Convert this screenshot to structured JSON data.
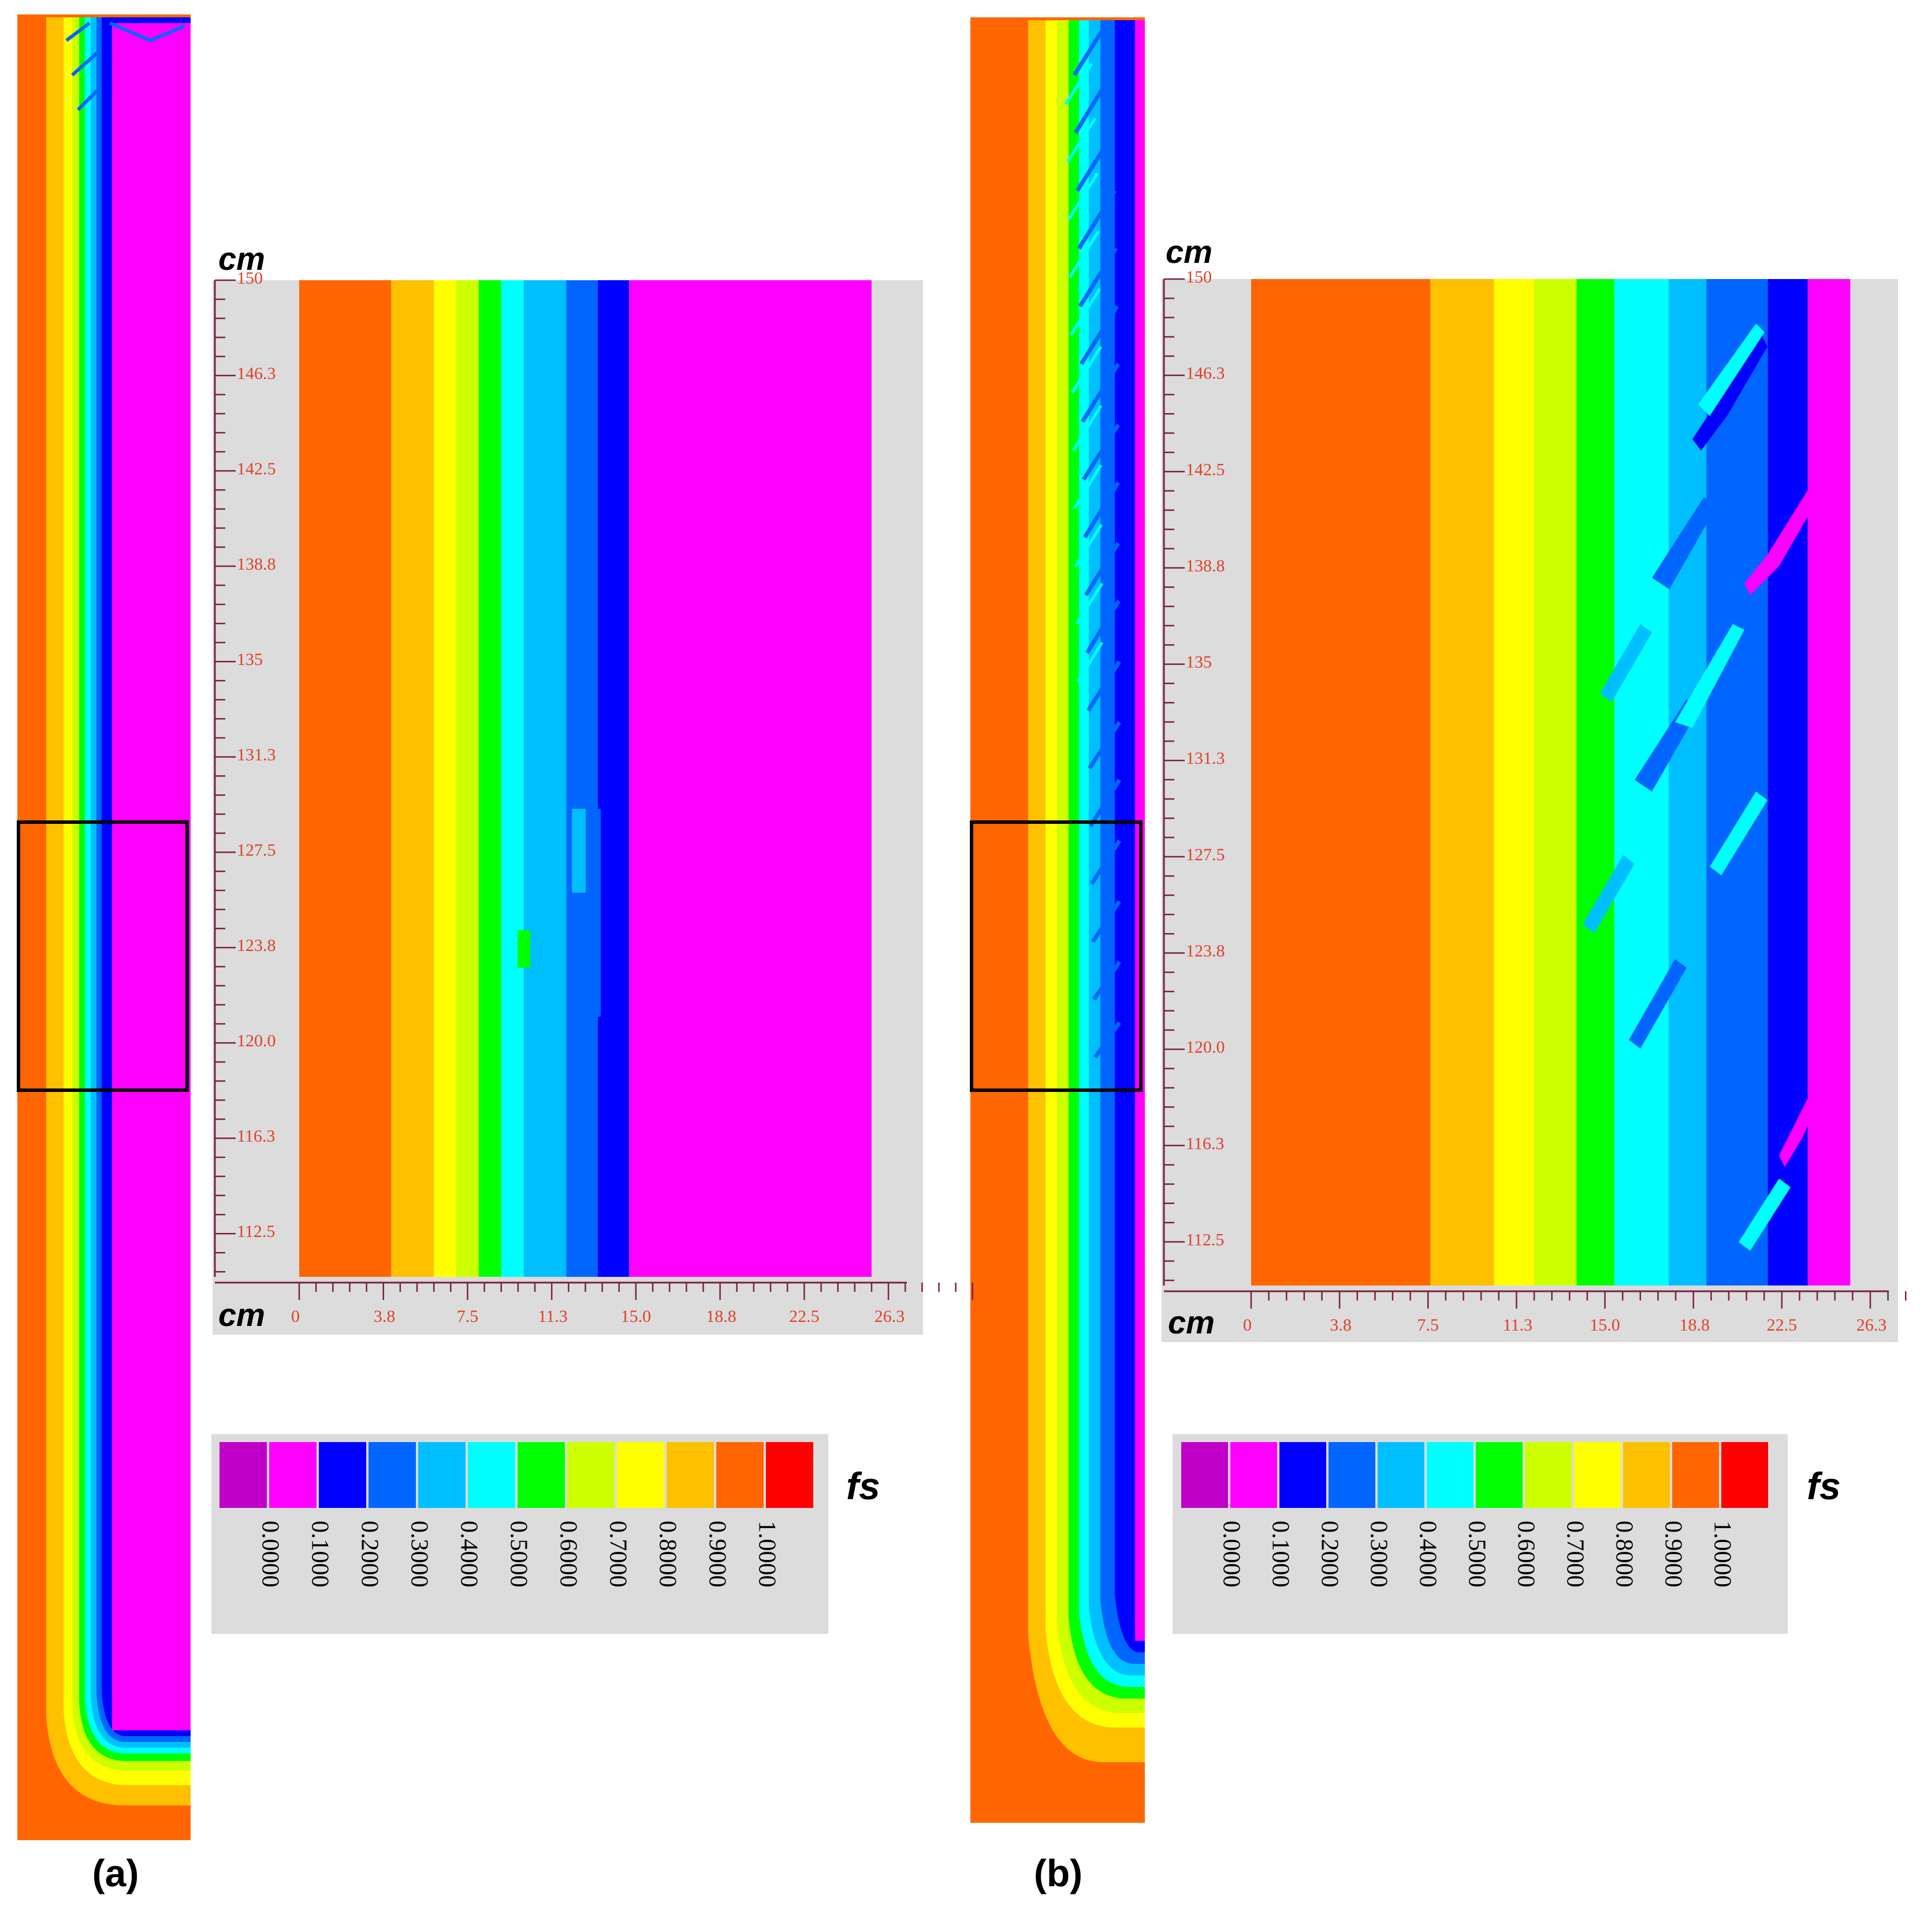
{
  "figure": {
    "colorbar_symbol": "fs",
    "axis_unit": "cm",
    "colors": {
      "magenta": "#ff00ff",
      "purple": "#c000c8",
      "blue": "#0000ff",
      "medium_blue": "#0066ff",
      "sky_blue": "#00bfff",
      "cyan": "#00ffff",
      "green": "#00ff00",
      "yellow_green": "#ccff00",
      "yellow": "#ffff00",
      "gold": "#ffc000",
      "orange": "#ff6600",
      "red": "#ff0000",
      "panel_gray": "#dcdcdc",
      "tick_label": "#e0402a",
      "tick_mark": "#7a2040"
    }
  },
  "chart_data": [
    {
      "type": "heatmap",
      "panel_label": "(a)",
      "variable": "fs",
      "ylabel": "cm",
      "xlabel": "cm",
      "y_ticks": [
        "150",
        "146.3",
        "142.5",
        "138.8",
        "135",
        "131.3",
        "127.5",
        "123.8",
        "120.0",
        "116.3",
        "112.5"
      ],
      "x_ticks": [
        "0",
        "3.8",
        "7.5",
        "11.3",
        "15.0",
        "18.8",
        "22.5",
        "26.3"
      ],
      "xlim": [
        0,
        26.3
      ],
      "ylim": [
        110.8,
        150
      ],
      "bands": [
        {
          "fs": 0.95,
          "x_start": 0,
          "x_end": 4.1
        },
        {
          "fs": 0.85,
          "x_start": 4.1,
          "x_end": 6.0
        },
        {
          "fs": 0.75,
          "x_start": 6.0,
          "x_end": 7.0
        },
        {
          "fs": 0.65,
          "x_start": 7.0,
          "x_end": 8.0
        },
        {
          "fs": 0.55,
          "x_start": 8.0,
          "x_end": 9.0
        },
        {
          "fs": 0.45,
          "x_start": 9.0,
          "x_end": 10.0
        },
        {
          "fs": 0.35,
          "x_start": 10.0,
          "x_end": 11.9
        },
        {
          "fs": 0.25,
          "x_start": 11.9,
          "x_end": 13.3
        },
        {
          "fs": 0.15,
          "x_start": 13.3,
          "x_end": 14.7
        },
        {
          "fs": 0.05,
          "x_start": 14.7,
          "x_end": 25.5
        }
      ],
      "colorbar": {
        "labels": [
          "0.0000",
          "0.1000",
          "0.2000",
          "0.3000",
          "0.4000",
          "0.5000",
          "0.6000",
          "0.7000",
          "0.8000",
          "0.9000",
          "1.0000"
        ]
      }
    },
    {
      "type": "heatmap",
      "panel_label": "(b)",
      "variable": "fs",
      "ylabel": "cm",
      "xlabel": "cm",
      "y_ticks": [
        "150",
        "146.3",
        "142.5",
        "138.8",
        "135",
        "131.3",
        "127.5",
        "123.8",
        "120.0",
        "116.3",
        "112.5"
      ],
      "x_ticks": [
        "0",
        "3.8",
        "7.5",
        "11.3",
        "15.0",
        "18.8",
        "22.5",
        "26.3"
      ],
      "xlim": [
        0,
        26.3
      ],
      "ylim": [
        110.8,
        150
      ],
      "bands": [
        {
          "fs": 0.95,
          "x_start": 0,
          "x_end": 7.6
        },
        {
          "fs": 0.85,
          "x_start": 7.6,
          "x_end": 10.3
        },
        {
          "fs": 0.75,
          "x_start": 10.3,
          "x_end": 12.0
        },
        {
          "fs": 0.65,
          "x_start": 12.0,
          "x_end": 13.8
        },
        {
          "fs": 0.55,
          "x_start": 13.8,
          "x_end": 15.4
        },
        {
          "fs": 0.45,
          "x_start": 15.4,
          "x_end": 17.7
        },
        {
          "fs": 0.35,
          "x_start": 17.7,
          "x_end": 19.3
        },
        {
          "fs": 0.25,
          "x_start": 19.3,
          "x_end": 21.9
        },
        {
          "fs": 0.15,
          "x_start": 21.9,
          "x_end": 23.6
        },
        {
          "fs": 0.05,
          "x_start": 23.6,
          "x_end": 25.4
        }
      ],
      "colorbar": {
        "labels": [
          "0.0000",
          "0.1000",
          "0.2000",
          "0.3000",
          "0.4000",
          "0.5000",
          "0.6000",
          "0.7000",
          "0.8000",
          "0.9000",
          "1.0000"
        ]
      }
    }
  ]
}
